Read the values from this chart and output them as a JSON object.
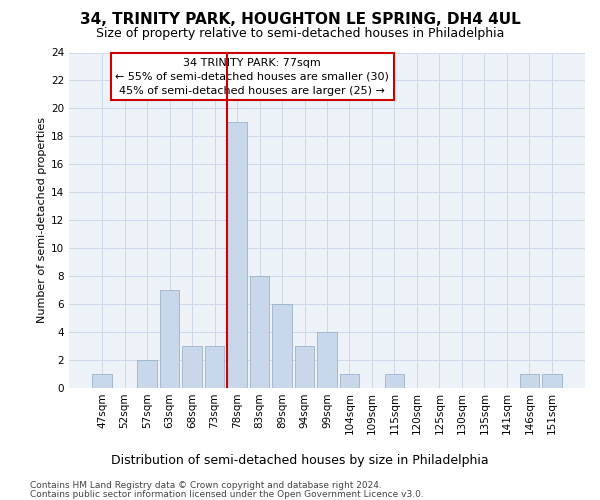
{
  "title": "34, TRINITY PARK, HOUGHTON LE SPRING, DH4 4UL",
  "subtitle": "Size of property relative to semi-detached houses in Philadelphia",
  "xlabel": "Distribution of semi-detached houses by size in Philadelphia",
  "ylabel": "Number of semi-detached properties",
  "footnote1": "Contains HM Land Registry data © Crown copyright and database right 2024.",
  "footnote2": "Contains public sector information licensed under the Open Government Licence v3.0.",
  "categories": [
    "47sqm",
    "52sqm",
    "57sqm",
    "63sqm",
    "68sqm",
    "73sqm",
    "78sqm",
    "83sqm",
    "89sqm",
    "94sqm",
    "99sqm",
    "104sqm",
    "109sqm",
    "115sqm",
    "120sqm",
    "125sqm",
    "130sqm",
    "135sqm",
    "141sqm",
    "146sqm",
    "151sqm"
  ],
  "values": [
    1,
    0,
    2,
    7,
    3,
    3,
    19,
    8,
    6,
    3,
    4,
    1,
    0,
    1,
    0,
    0,
    0,
    0,
    0,
    1,
    1
  ],
  "bar_color": "#c8d8ea",
  "bar_edge_color": "#9ab4cc",
  "grid_color": "#cdd8e8",
  "background_color": "#edf2f8",
  "vline_color": "#cc0000",
  "annotation_line1": "34 TRINITY PARK: 77sqm",
  "annotation_line2": "← 55% of semi-detached houses are smaller (30)",
  "annotation_line3": "45% of semi-detached houses are larger (25) →",
  "ylim": [
    0,
    24
  ],
  "yticks": [
    0,
    2,
    4,
    6,
    8,
    10,
    12,
    14,
    16,
    18,
    20,
    22,
    24
  ],
  "title_fontsize": 11,
  "subtitle_fontsize": 9,
  "xlabel_fontsize": 9,
  "ylabel_fontsize": 8,
  "tick_fontsize": 7.5,
  "annotation_fontsize": 8,
  "footnote_fontsize": 6.5
}
